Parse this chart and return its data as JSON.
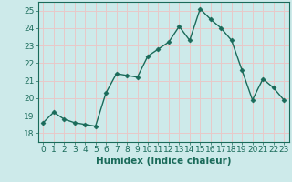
{
  "x": [
    0,
    1,
    2,
    3,
    4,
    5,
    6,
    7,
    8,
    9,
    10,
    11,
    12,
    13,
    14,
    15,
    16,
    17,
    18,
    19,
    20,
    21,
    22,
    23
  ],
  "y": [
    18.6,
    19.2,
    18.8,
    18.6,
    18.5,
    18.4,
    20.3,
    21.4,
    21.3,
    21.2,
    22.4,
    22.8,
    23.2,
    24.1,
    23.3,
    25.1,
    24.5,
    24.0,
    23.3,
    21.6,
    19.9,
    21.1,
    20.6,
    19.9
  ],
  "line_color": "#1a6b5a",
  "marker": "D",
  "marker_size": 2.5,
  "bg_color": "#cdeaea",
  "grid_color": "#e8c8c8",
  "xlabel": "Humidex (Indice chaleur)",
  "ylim": [
    17.5,
    25.5
  ],
  "xlim": [
    -0.5,
    23.5
  ],
  "yticks": [
    18,
    19,
    20,
    21,
    22,
    23,
    24,
    25
  ],
  "xticks": [
    0,
    1,
    2,
    3,
    4,
    5,
    6,
    7,
    8,
    9,
    10,
    11,
    12,
    13,
    14,
    15,
    16,
    17,
    18,
    19,
    20,
    21,
    22,
    23
  ],
  "tick_label_size": 6.5,
  "xlabel_size": 7.5,
  "line_width": 1.0
}
